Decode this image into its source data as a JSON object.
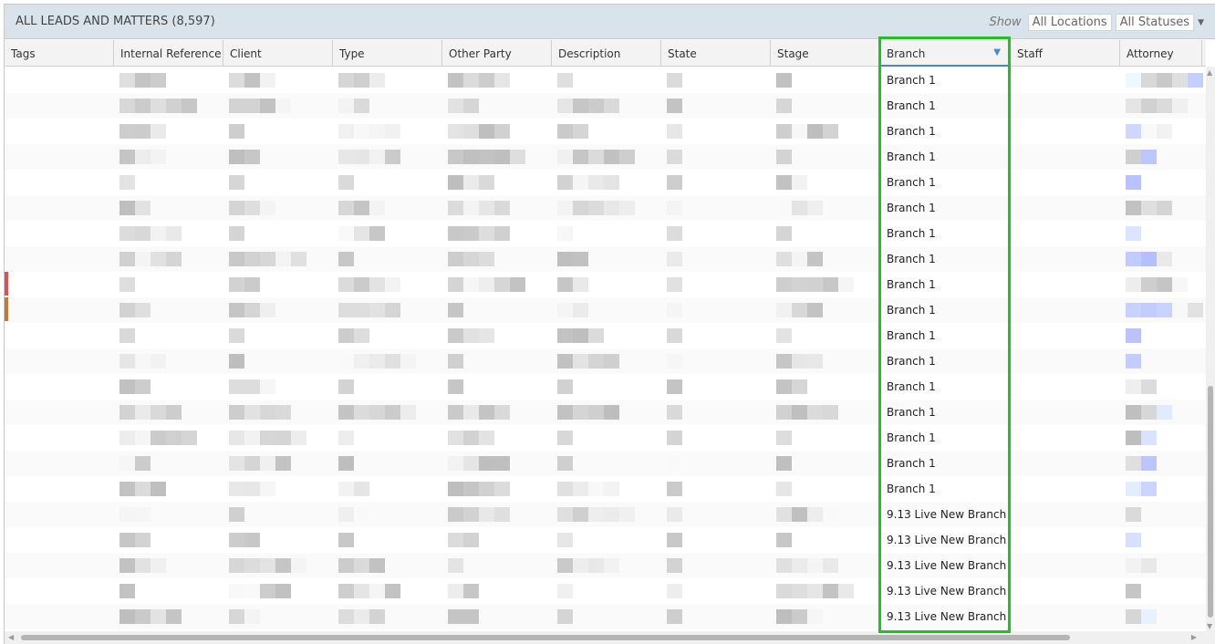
{
  "header": {
    "title": "ALL LEADS AND MATTERS (8,597)",
    "show_label": "Show",
    "location_filter": "All Locations",
    "status_filter": "All Statuses"
  },
  "columns": [
    {
      "label": "Tags",
      "w": 120
    },
    {
      "label": "Internal Reference",
      "w": 120
    },
    {
      "label": "Client",
      "w": 120
    },
    {
      "label": "Type",
      "w": 120
    },
    {
      "label": "Other Party",
      "w": 120
    },
    {
      "label": "Description",
      "w": 120
    },
    {
      "label": "State",
      "w": 120
    },
    {
      "label": "Stage",
      "w": 120
    },
    {
      "label": "Branch",
      "w": 143,
      "sorted": true
    },
    {
      "label": "Staff",
      "w": 120
    },
    {
      "label": "Attorney",
      "w": 90
    }
  ],
  "branch_values": [
    "Branch 1",
    "Branch 1",
    "Branch 1",
    "Branch 1",
    "Branch 1",
    "Branch 1",
    "Branch 1",
    "Branch 1",
    "Branch 1",
    "Branch 1",
    "Branch 1",
    "Branch 1",
    "Branch 1",
    "Branch 1",
    "Branch 1",
    "Branch 1",
    "Branch 1",
    "9.13 Live New Branch",
    "9.13 Live New Branch",
    "9.13 Live New Branch",
    "9.13 Live New Branch",
    "9.13 Live New Branch"
  ],
  "tag_colors": {
    "8": "#e05050",
    "9": "#c87830"
  },
  "colors": {
    "highlight": "#22c022",
    "sort_arrow": "#4a86d8",
    "title_bar": "#d9e3ec"
  }
}
